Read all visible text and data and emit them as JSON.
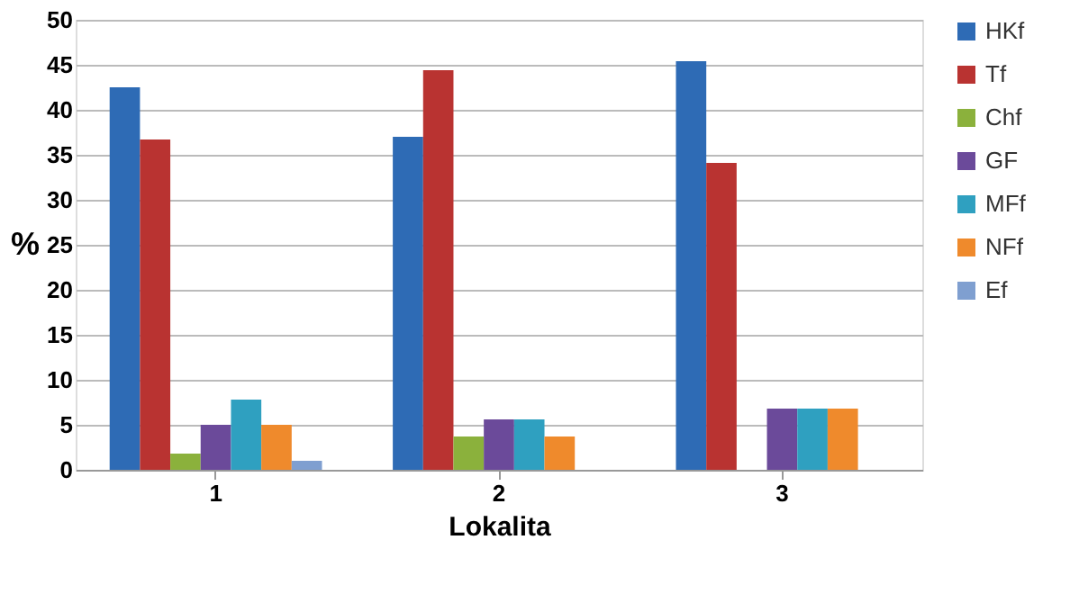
{
  "chart_data": {
    "type": "bar",
    "xlabel": "Lokalita",
    "ylabel": "%",
    "categories": [
      "1",
      "2",
      "3"
    ],
    "series": [
      {
        "name": "HKf",
        "color": "#2e6bb5",
        "values": [
          42.5,
          37.0,
          45.4
        ]
      },
      {
        "name": "Tf",
        "color": "#b93331",
        "values": [
          36.7,
          44.4,
          34.1
        ]
      },
      {
        "name": "Chf",
        "color": "#8bb13c",
        "values": [
          1.8,
          3.7,
          null
        ]
      },
      {
        "name": "GF",
        "color": "#6b4a9a",
        "values": [
          5.0,
          5.6,
          6.8
        ]
      },
      {
        "name": "MFf",
        "color": "#2fa0c0",
        "values": [
          7.8,
          5.6,
          6.8
        ]
      },
      {
        "name": "NFf",
        "color": "#ef8a2c",
        "values": [
          5.0,
          3.7,
          6.8
        ]
      },
      {
        "name": "Ef",
        "color": "#7f9fd0",
        "values": [
          1.0,
          null,
          null
        ]
      }
    ],
    "ylim": [
      0,
      50
    ],
    "yticks": [
      0,
      5,
      10,
      15,
      20,
      25,
      30,
      35,
      40,
      45,
      50
    ],
    "grid": "y",
    "legend": "right"
  }
}
